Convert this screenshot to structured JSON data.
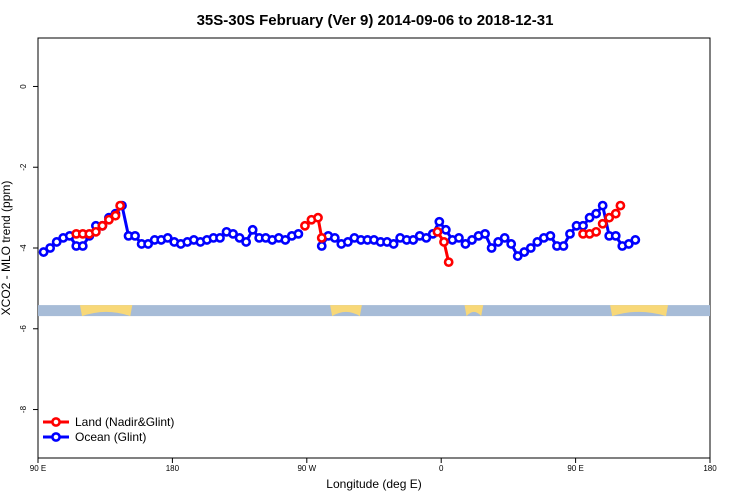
{
  "chart_data": {
    "type": "line",
    "title": "35S-30S February (Ver 9)   2014-09-06 to 2018-12-31",
    "xlabel": "Longitude (deg E)",
    "ylabel": "XCO2 - MLO trend (ppm)",
    "xlim": [
      90,
      450
    ],
    "ylim": [
      -9.2,
      1.2
    ],
    "x_ticks": [
      {
        "value": 90,
        "label": "90 E"
      },
      {
        "value": 162,
        "label": "180"
      },
      {
        "value": 234,
        "label": "90 W"
      },
      {
        "value": 306,
        "label": "0"
      },
      {
        "value": 378,
        "label": "90 E"
      },
      {
        "value": 450,
        "label": "180"
      }
    ],
    "y_ticks": [
      0,
      -2,
      -4,
      -6,
      -8
    ],
    "land_band": {
      "y_center": -5.55,
      "ocean_color": "#a7bcd7",
      "land_color": "#f8d878",
      "land_segments": [
        [
          112.5,
          140.5
        ],
        [
          246.5,
          263.5
        ],
        [
          318.5,
          328.5
        ],
        [
          396.5,
          427.5
        ]
      ]
    },
    "legend": {
      "position": "bottom-left",
      "entries": [
        {
          "name": "Land (Nadir&Glint)",
          "color": "#ff0000"
        },
        {
          "name": "Ocean (Glint)",
          "color": "#0000ff"
        }
      ]
    },
    "series": [
      {
        "name": "Ocean (Glint)",
        "color": "#0000ff",
        "segments": [
          [
            [
              93,
              -4.1
            ],
            [
              96.5,
              -4.0
            ],
            [
              100,
              -3.85
            ],
            [
              103.5,
              -3.75
            ],
            [
              107,
              -3.7
            ],
            [
              110.5,
              -3.95
            ],
            [
              114,
              -3.95
            ],
            [
              117.5,
              -3.7
            ],
            [
              121,
              -3.45
            ],
            [
              124.5,
              -3.45
            ],
            [
              128,
              -3.25
            ],
            [
              131.5,
              -3.15
            ],
            [
              135,
              -2.95
            ],
            [
              138.5,
              -3.7
            ],
            [
              142,
              -3.7
            ],
            [
              145.5,
              -3.9
            ],
            [
              149,
              -3.9
            ],
            [
              152.5,
              -3.8
            ],
            [
              156,
              -3.8
            ],
            [
              159.5,
              -3.75
            ],
            [
              163,
              -3.85
            ],
            [
              166.5,
              -3.9
            ],
            [
              170,
              -3.85
            ],
            [
              173.5,
              -3.8
            ],
            [
              177,
              -3.85
            ],
            [
              180.5,
              -3.8
            ],
            [
              184,
              -3.75
            ],
            [
              187.5,
              -3.75
            ],
            [
              191,
              -3.6
            ],
            [
              194.5,
              -3.65
            ],
            [
              198,
              -3.75
            ],
            [
              201.5,
              -3.85
            ],
            [
              205,
              -3.55
            ],
            [
              208.5,
              -3.75
            ],
            [
              212,
              -3.75
            ],
            [
              215.5,
              -3.8
            ],
            [
              219,
              -3.75
            ],
            [
              222.5,
              -3.8
            ],
            [
              226,
              -3.7
            ],
            [
              229.5,
              -3.65
            ]
          ],
          [
            [
              242,
              -3.95
            ],
            [
              245.5,
              -3.7
            ],
            [
              249,
              -3.75
            ],
            [
              252.5,
              -3.9
            ],
            [
              256,
              -3.85
            ],
            [
              259.5,
              -3.75
            ],
            [
              263,
              -3.8
            ],
            [
              266.5,
              -3.8
            ],
            [
              270,
              -3.8
            ],
            [
              273.5,
              -3.85
            ],
            [
              277,
              -3.85
            ],
            [
              280.5,
              -3.9
            ],
            [
              284,
              -3.75
            ],
            [
              287.5,
              -3.8
            ],
            [
              291,
              -3.8
            ],
            [
              294.5,
              -3.7
            ],
            [
              298,
              -3.75
            ],
            [
              301.5,
              -3.65
            ],
            [
              305,
              -3.35
            ],
            [
              308.5,
              -3.55
            ],
            [
              312,
              -3.8
            ],
            [
              315.5,
              -3.75
            ],
            [
              319,
              -3.9
            ],
            [
              322.5,
              -3.8
            ],
            [
              326,
              -3.7
            ],
            [
              329.5,
              -3.65
            ],
            [
              333,
              -4.0
            ],
            [
              336.5,
              -3.85
            ],
            [
              340,
              -3.75
            ],
            [
              343.5,
              -3.9
            ],
            [
              347,
              -4.2
            ],
            [
              350.5,
              -4.1
            ],
            [
              354,
              -4.0
            ],
            [
              357.5,
              -3.85
            ],
            [
              361,
              -3.75
            ],
            [
              364.5,
              -3.7
            ],
            [
              368,
              -3.95
            ],
            [
              371.5,
              -3.95
            ],
            [
              375,
              -3.65
            ],
            [
              378.5,
              -3.45
            ],
            [
              382,
              -3.45
            ],
            [
              385.5,
              -3.25
            ],
            [
              389,
              -3.15
            ],
            [
              392.5,
              -2.95
            ],
            [
              396,
              -3.7
            ],
            [
              399.5,
              -3.7
            ],
            [
              403,
              -3.95
            ],
            [
              406.5,
              -3.9
            ],
            [
              410,
              -3.8
            ]
          ]
        ]
      },
      {
        "name": "Land (Nadir&Glint)",
        "color": "#ff0000",
        "segments": [
          [
            [
              110.5,
              -3.65
            ],
            [
              114,
              -3.65
            ],
            [
              117.5,
              -3.65
            ],
            [
              121,
              -3.6
            ]
          ],
          [
            [
              124.5,
              -3.45
            ],
            [
              128,
              -3.3
            ],
            [
              131.5,
              -3.2
            ],
            [
              134,
              -2.95
            ]
          ],
          [
            [
              233,
              -3.45
            ],
            [
              236.5,
              -3.3
            ],
            [
              240,
              -3.25
            ],
            [
              242,
              -3.75
            ]
          ],
          [
            [
              304,
              -3.6
            ],
            [
              307.5,
              -3.85
            ],
            [
              310,
              -4.35
            ]
          ],
          [
            [
              382,
              -3.65
            ],
            [
              385.5,
              -3.65
            ],
            [
              389,
              -3.6
            ]
          ],
          [
            [
              392.5,
              -3.4
            ],
            [
              396,
              -3.25
            ],
            [
              399.5,
              -3.15
            ],
            [
              402,
              -2.95
            ]
          ]
        ]
      }
    ]
  }
}
